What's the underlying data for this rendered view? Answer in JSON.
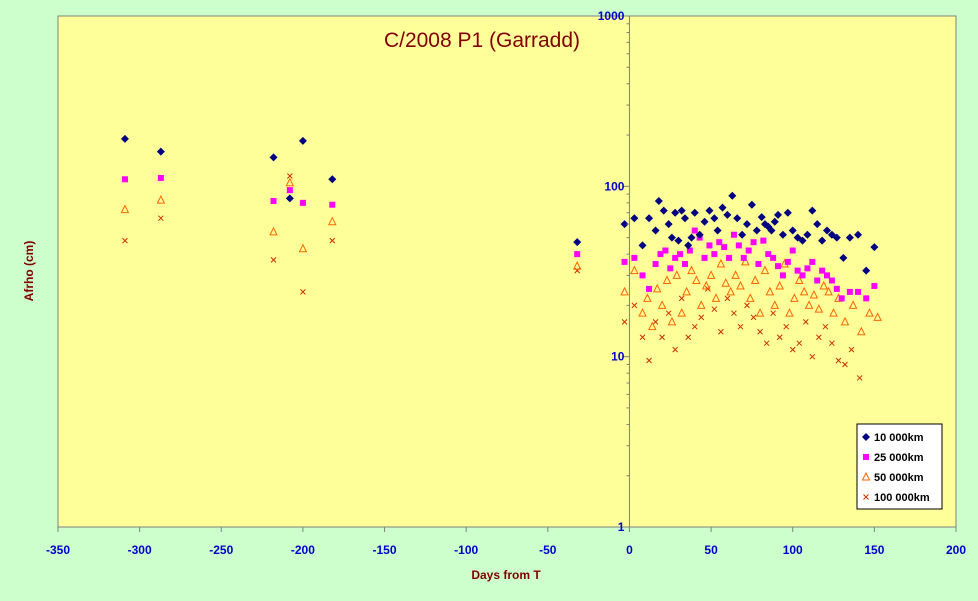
{
  "chart_data": {
    "type": "scatter",
    "title": "C/2008 P1 (Garradd)",
    "xlabel": "Days from T",
    "ylabel": "Afrho (cm)",
    "xlim": [
      -350,
      200
    ],
    "ylim": [
      1,
      1000
    ],
    "y_scale": "log",
    "x_ticks": [
      -350,
      -300,
      -250,
      -200,
      -150,
      -100,
      -50,
      0,
      50,
      100,
      150,
      200
    ],
    "y_ticks": [
      1,
      10,
      100,
      1000
    ],
    "grid": false,
    "legend_position": "bottom-right",
    "colors": {
      "page_background": "#ccffcc",
      "plot_background": "#ffff99",
      "title": "#800000",
      "axis_label": "#800000",
      "tick_label": "#0000cc"
    },
    "series": [
      {
        "name": "10 000km",
        "marker": "diamond",
        "color": "#000080",
        "x": [
          -309,
          -287,
          -218,
          -208,
          -200,
          -182,
          -32,
          -3,
          3,
          8,
          12,
          16,
          18,
          21,
          24,
          26,
          28,
          30,
          32,
          34,
          36,
          38,
          40,
          43,
          46,
          49,
          52,
          54,
          57,
          60,
          63,
          66,
          69,
          72,
          75,
          78,
          81,
          83,
          85,
          87,
          89,
          91,
          94,
          97,
          100,
          103,
          106,
          109,
          112,
          115,
          118,
          121,
          124,
          127,
          131,
          135,
          140,
          145,
          150
        ],
        "y": [
          190,
          160,
          148,
          85,
          185,
          110,
          47,
          60,
          65,
          45,
          65,
          55,
          82,
          72,
          60,
          50,
          70,
          48,
          72,
          65,
          45,
          50,
          70,
          52,
          62,
          72,
          65,
          55,
          75,
          68,
          88,
          65,
          52,
          60,
          78,
          55,
          66,
          60,
          58,
          55,
          62,
          68,
          52,
          70,
          55,
          50,
          48,
          52,
          72,
          60,
          48,
          55,
          52,
          50,
          38,
          50,
          52,
          32,
          44
        ]
      },
      {
        "name": "25 000km",
        "marker": "square",
        "color": "#ff00ff",
        "x": [
          -309,
          -287,
          -218,
          -208,
          -200,
          -182,
          -32,
          -3,
          3,
          8,
          12,
          16,
          19,
          22,
          25,
          28,
          31,
          34,
          37,
          40,
          43,
          46,
          49,
          52,
          55,
          58,
          61,
          64,
          67,
          70,
          73,
          76,
          79,
          82,
          85,
          88,
          91,
          94,
          97,
          100,
          103,
          106,
          109,
          112,
          115,
          118,
          121,
          124,
          127,
          130,
          135,
          140,
          145,
          150
        ],
        "y": [
          110,
          112,
          82,
          95,
          80,
          78,
          40,
          36,
          38,
          30,
          25,
          35,
          40,
          42,
          33,
          38,
          40,
          35,
          42,
          55,
          50,
          38,
          45,
          40,
          47,
          44,
          38,
          52,
          45,
          38,
          42,
          47,
          35,
          48,
          40,
          38,
          34,
          30,
          36,
          42,
          32,
          30,
          33,
          36,
          28,
          32,
          30,
          28,
          25,
          22,
          24,
          24,
          22,
          26
        ]
      },
      {
        "name": "50 000km",
        "marker": "triangle",
        "color": "#ff6600",
        "x": [
          -309,
          -287,
          -218,
          -208,
          -200,
          -182,
          -32,
          -3,
          3,
          8,
          11,
          14,
          17,
          20,
          23,
          26,
          29,
          32,
          35,
          38,
          41,
          44,
          47,
          50,
          53,
          56,
          59,
          62,
          65,
          68,
          71,
          74,
          77,
          80,
          83,
          86,
          89,
          92,
          95,
          98,
          101,
          104,
          107,
          110,
          113,
          116,
          119,
          122,
          125,
          128,
          132,
          137,
          142,
          147,
          152
        ],
        "y": [
          73,
          83,
          54,
          105,
          43,
          62,
          34,
          24,
          32,
          18,
          22,
          15,
          25,
          20,
          28,
          16,
          30,
          18,
          24,
          32,
          28,
          20,
          26,
          30,
          22,
          35,
          27,
          24,
          30,
          26,
          36,
          22,
          28,
          18,
          32,
          24,
          20,
          26,
          35,
          18,
          22,
          28,
          24,
          20,
          23,
          19,
          26,
          24,
          18,
          22,
          16,
          20,
          14,
          18,
          17
        ]
      },
      {
        "name": "100 000km",
        "marker": "cross",
        "color": "#cc3300",
        "x": [
          -309,
          -287,
          -218,
          -208,
          -200,
          -182,
          -32,
          -3,
          3,
          8,
          12,
          16,
          20,
          24,
          28,
          32,
          36,
          40,
          44,
          48,
          52,
          56,
          60,
          64,
          68,
          72,
          76,
          80,
          84,
          88,
          92,
          96,
          100,
          104,
          108,
          112,
          116,
          120,
          124,
          128,
          132,
          136,
          141
        ],
        "y": [
          48,
          65,
          37,
          115,
          24,
          48,
          32,
          16,
          20,
          13,
          9.5,
          16,
          13,
          18,
          11,
          22,
          13,
          15,
          17,
          25,
          19,
          14,
          22,
          18,
          15,
          20,
          17,
          14,
          12,
          18,
          13,
          15,
          11,
          12,
          16,
          10,
          13,
          15,
          12,
          9.5,
          9,
          11,
          7.5
        ]
      }
    ]
  }
}
